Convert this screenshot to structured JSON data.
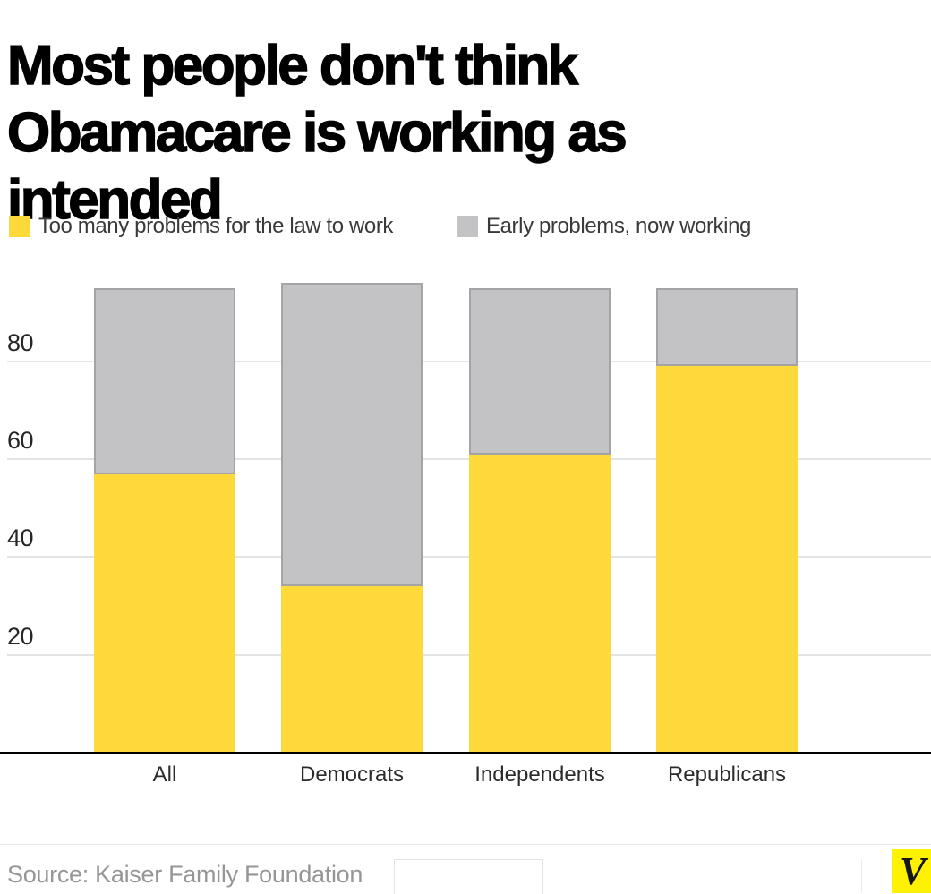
{
  "title": {
    "text": "Most people don't think Obamacare is working as intended",
    "lines": [
      "Most people don't think",
      "Obamacare is working as",
      "intended"
    ]
  },
  "chart_data": {
    "type": "stacked-bar",
    "title": "Most people don't think Obamacare is working as intended",
    "categories": [
      "All",
      "Democrats",
      "Independents",
      "Republicans"
    ],
    "series": [
      {
        "name": "Too many problems for the law to work",
        "color": "#fdda3a",
        "values": [
          57,
          34,
          61,
          79
        ]
      },
      {
        "name": "Early problems, now working",
        "color": "#c3c3c5",
        "values": [
          38,
          62,
          34,
          16
        ]
      }
    ],
    "totals": [
      95,
      96,
      95,
      95
    ],
    "xlabel": "",
    "ylabel": "",
    "ylim": [
      0,
      97
    ],
    "yticks": [
      20,
      40,
      60,
      80
    ],
    "grid": true,
    "legend_position": "top-left",
    "source": "Source: Kaiser Family Foundation"
  },
  "footer": {
    "source_label": "Source: Kaiser Family Foundation",
    "logo_letter": "V",
    "logo_bg": "#FFF200"
  },
  "colors": {
    "bar_yellow": "#fdda3a",
    "bar_gray": "#c3c3c5",
    "bar_gray_border": "#a4a4a7",
    "gridline": "#e3e3e3",
    "axis": "#000000",
    "title_text": "#000000",
    "legend_text": "#3a3a3a",
    "tick_text": "#262626",
    "source_text": "#969696",
    "logo_letter_color": "#161622"
  }
}
